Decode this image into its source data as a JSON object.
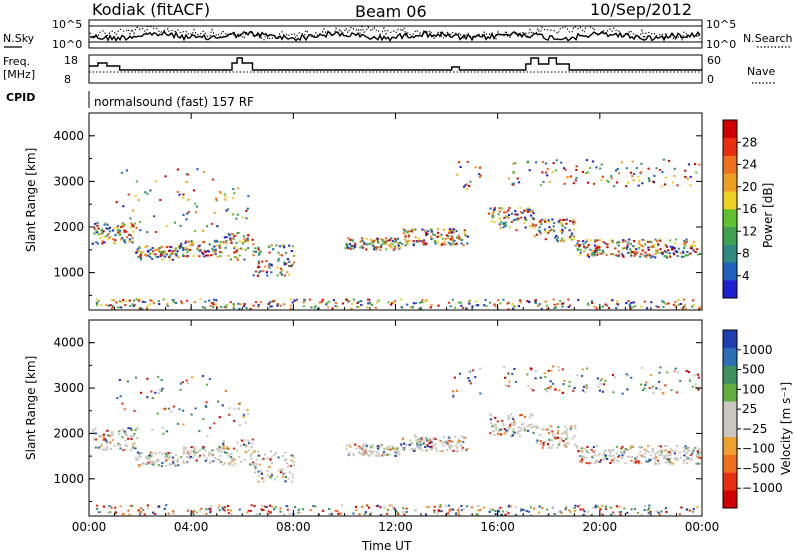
{
  "header": {
    "station": "Kodiak (fitACF)",
    "beam": "Beam 06",
    "date": "10/Sep/2012"
  },
  "noise_panel": {
    "left_label": "N.Sky",
    "right_label": "N.Search",
    "left_ticks": [
      "10^5",
      "10^0"
    ],
    "right_ticks": [
      "10^5",
      "10^0"
    ]
  },
  "freq_panel": {
    "left_label_1": "Freq.",
    "left_label_2": "[MHz]",
    "left_ticks": [
      "18",
      "8"
    ],
    "right_ticks": [
      "60",
      "0"
    ],
    "right_label": "Nave"
  },
  "cpid": {
    "label": "CPID",
    "value": "normalsound (fast) 157 RF"
  },
  "colors": {
    "power_scale": [
      "#1f1fd0",
      "#2060c0",
      "#2e8a80",
      "#3fa050",
      "#60c030",
      "#f0d020",
      "#f0a020",
      "#f07020",
      "#e83010",
      "#d00000"
    ],
    "velocity_scale": [
      "#1f3fb0",
      "#2a6fb8",
      "#3f8f5f",
      "#60b040",
      "#c8c8c0",
      "#c8c8c0",
      "#f0a030",
      "#f07020",
      "#e83010",
      "#d00000"
    ]
  },
  "chart_data": [
    {
      "type": "heatmap",
      "title": "",
      "ylabel": "Slant Range [km]",
      "ylim": [
        180,
        4500
      ],
      "y_ticks": [
        "1000",
        "2000",
        "3000",
        "4000"
      ],
      "colorbar": {
        "label": "Power [dB]",
        "range": [
          0,
          32
        ],
        "ticks": [
          "4",
          "8",
          "12",
          "16",
          "20",
          "24",
          "28"
        ]
      }
    },
    {
      "type": "heatmap",
      "title": "",
      "xlabel": "Time UT",
      "ylabel": "Slant Range [km]",
      "ylim": [
        180,
        4500
      ],
      "y_ticks": [
        "1000",
        "2000",
        "3000",
        "4000"
      ],
      "x_ticks": [
        "00:00",
        "04:00",
        "08:00",
        "12:00",
        "16:00",
        "20:00",
        "00:00"
      ],
      "colorbar": {
        "label": "Velocity [m s⁻¹]",
        "range": [
          -1500,
          1500
        ],
        "ticks": [
          "1000",
          "500",
          "100",
          "25",
          "−25",
          "−100",
          "−500",
          "−1000"
        ]
      }
    }
  ]
}
